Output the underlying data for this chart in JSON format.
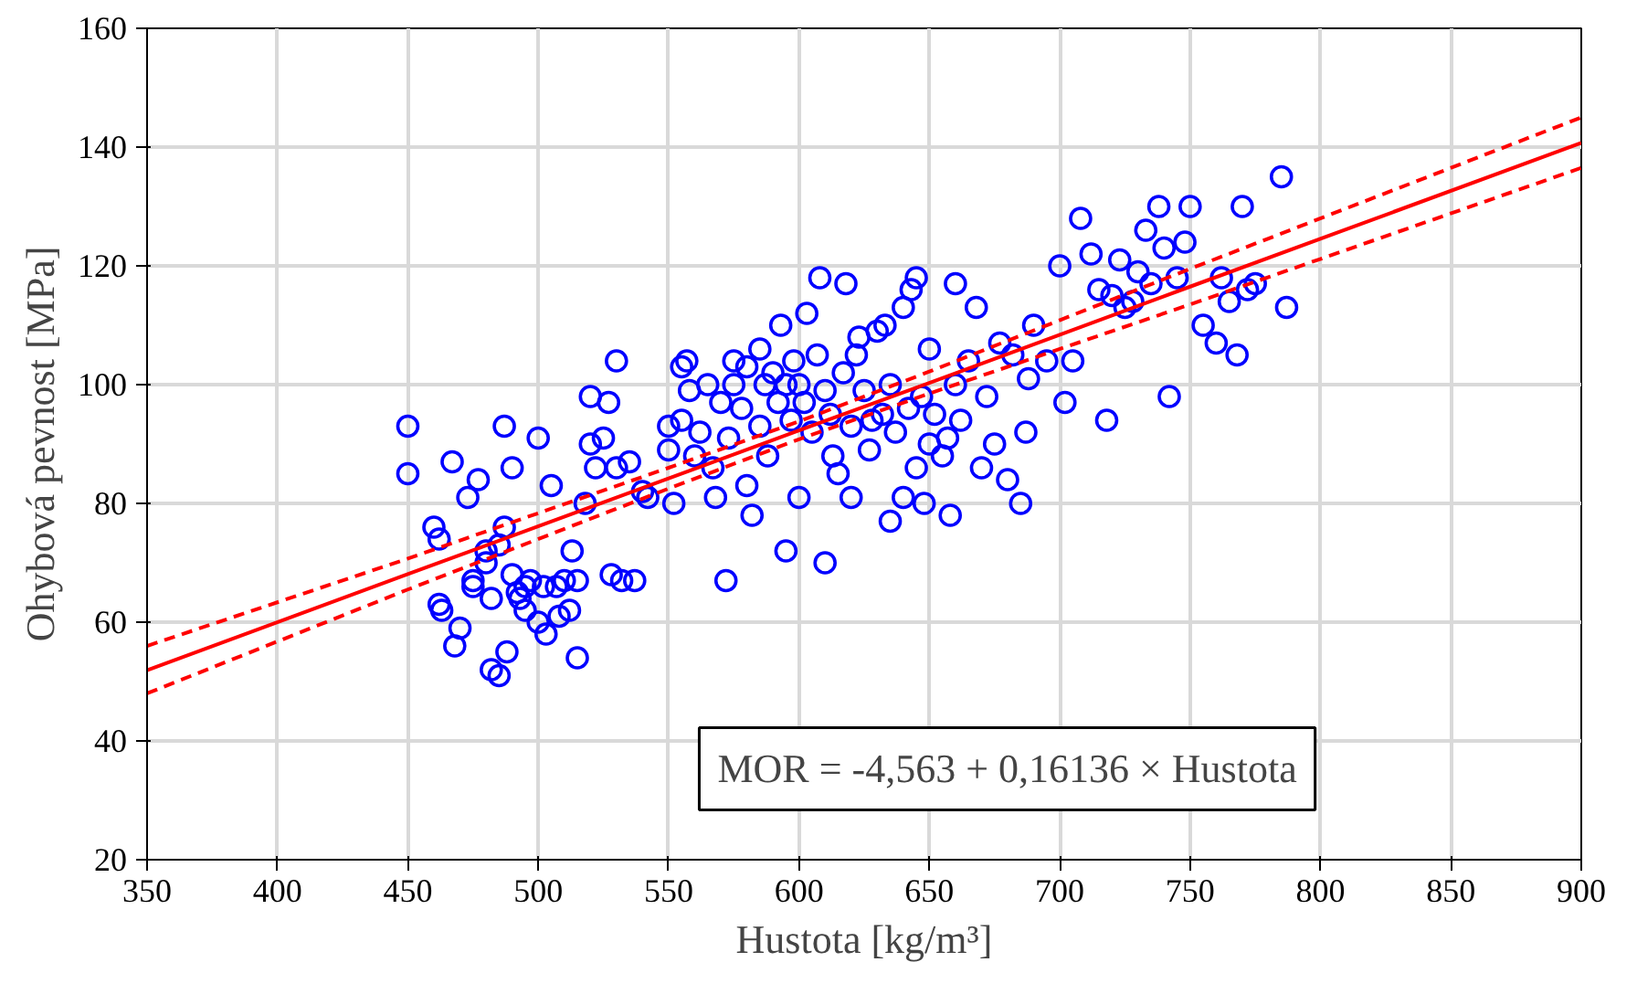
{
  "chart_data": {
    "type": "scatter",
    "xlabel": "Hustota [kg/m³]",
    "ylabel": "Ohybová pevnost [MPa]",
    "xlim": [
      350,
      900
    ],
    "ylim": [
      20,
      160
    ],
    "xticks": [
      350,
      400,
      450,
      500,
      550,
      600,
      650,
      700,
      750,
      800,
      850,
      900
    ],
    "yticks": [
      20,
      40,
      60,
      80,
      100,
      120,
      140,
      160
    ],
    "grid": true,
    "marker": "circle",
    "annotations": [
      "MOR = -4,563 + 0,16136 × Hustota"
    ],
    "series": [
      {
        "color": "#0000ff",
        "x": [
          450,
          450,
          460,
          462,
          462,
          463,
          467,
          468,
          470,
          473,
          475,
          475,
          477,
          480,
          480,
          482,
          482,
          485,
          485,
          487,
          487,
          488,
          490,
          490,
          492,
          493,
          495,
          495,
          497,
          500,
          500,
          502,
          503,
          505,
          507,
          508,
          510,
          512,
          513,
          515,
          515,
          518,
          520,
          520,
          522,
          525,
          527,
          528,
          530,
          530,
          532,
          535,
          537,
          540,
          542,
          550,
          550,
          552,
          555,
          555,
          557,
          558,
          560,
          562,
          565,
          567,
          568,
          570,
          572,
          573,
          575,
          575,
          578,
          580,
          580,
          582,
          585,
          585,
          587,
          588,
          590,
          592,
          593,
          595,
          595,
          597,
          598,
          600,
          600,
          602,
          603,
          605,
          607,
          608,
          610,
          610,
          612,
          613,
          615,
          617,
          618,
          620,
          620,
          622,
          623,
          625,
          627,
          628,
          630,
          632,
          633,
          635,
          635,
          637,
          640,
          640,
          642,
          643,
          645,
          645,
          647,
          648,
          650,
          650,
          652,
          655,
          657,
          658,
          660,
          660,
          662,
          665,
          668,
          670,
          672,
          675,
          677,
          680,
          682,
          685,
          687,
          688,
          690,
          695,
          700,
          702,
          705,
          708,
          712,
          715,
          718,
          720,
          723,
          725,
          728,
          730,
          733,
          735,
          738,
          740,
          742,
          745,
          748,
          750,
          755,
          760,
          762,
          765,
          768,
          770,
          772,
          775,
          785,
          787
        ],
        "values": [
          93,
          85,
          76,
          74,
          63,
          62,
          87,
          56,
          59,
          81,
          67,
          66,
          84,
          72,
          70,
          64,
          52,
          51,
          73,
          93,
          76,
          55,
          86,
          68,
          65,
          64,
          62,
          66,
          67,
          60,
          91,
          66,
          58,
          83,
          66,
          61,
          67,
          62,
          72,
          54,
          67,
          80,
          90,
          98,
          86,
          91,
          97,
          68,
          86,
          104,
          67,
          87,
          67,
          82,
          81,
          89,
          93,
          80,
          94,
          103,
          104,
          99,
          88,
          92,
          100,
          86,
          81,
          97,
          67,
          91,
          100,
          104,
          96,
          83,
          103,
          78,
          93,
          106,
          100,
          88,
          102,
          97,
          110,
          100,
          72,
          94,
          104,
          81,
          100,
          97,
          112,
          92,
          105,
          118,
          70,
          99,
          95,
          88,
          85,
          102,
          117,
          93,
          81,
          105,
          108,
          99,
          89,
          94,
          109,
          95,
          110,
          77,
          100,
          92,
          113,
          81,
          96,
          116,
          118,
          86,
          98,
          80,
          106,
          90,
          95,
          88,
          91,
          78,
          100,
          117,
          94,
          104,
          113,
          86,
          98,
          90,
          107,
          84,
          105,
          80,
          92,
          101,
          110,
          104,
          120,
          97,
          104,
          128,
          122,
          116,
          94,
          115,
          121,
          113,
          114,
          119,
          126,
          117,
          130,
          123,
          98,
          118,
          124,
          130,
          110,
          107,
          118,
          114,
          105,
          130,
          116,
          117,
          135,
          113
        ]
      },
      {
        "type": "line",
        "marker": "none",
        "line_style": "solid",
        "color": "#ff0000",
        "x": [
          350,
          450,
          550,
          600,
          650,
          750,
          900
        ],
        "values": [
          51.9,
          68.1,
          84.2,
          92.3,
          100.3,
          116.5,
          140.7
        ]
      },
      {
        "type": "line",
        "marker": "none",
        "line_style": "dashed",
        "color": "#ff0000",
        "x": [
          350,
          450,
          550,
          600,
          650,
          750,
          900
        ],
        "values": [
          48,
          65.5,
          82.5,
          90.8,
          98.5,
          113.5,
          136.5
        ]
      },
      {
        "type": "line",
        "marker": "none",
        "line_style": "dashed",
        "color": "#ff0000",
        "x": [
          350,
          450,
          550,
          600,
          650,
          750,
          900
        ],
        "values": [
          56,
          70.7,
          86.0,
          93.8,
          102.2,
          119.5,
          145
        ]
      }
    ]
  }
}
